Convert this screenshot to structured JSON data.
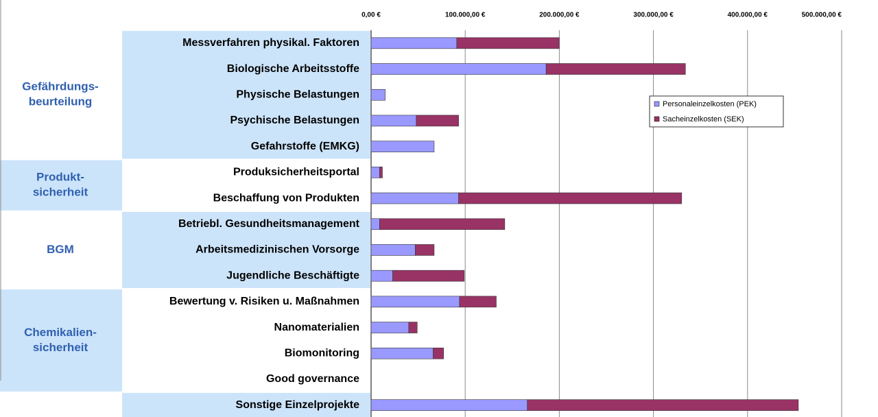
{
  "chart_data": {
    "type": "stacked-barh",
    "groups": [
      {
        "label": [
          "Gefährdungs-",
          "beurteilung"
        ],
        "categories": [
          "Messverfahren physikal. Faktoren",
          "Biologische Arbeitsstoffe",
          "Physische Belastungen",
          "Psychische Belastungen",
          "Gefahrstoffe (EMKG)"
        ]
      },
      {
        "label": [
          "Produkt-",
          "sicherheit"
        ],
        "categories": [
          "Produksicherheitsportal",
          "Beschaffung von Produkten"
        ]
      },
      {
        "label": [
          "BGM"
        ],
        "categories": [
          "Betriebl. Gesundheitsmanagement",
          "Arbeitsmedizinischen Vorsorge",
          "Jugendliche Beschäftigte"
        ]
      },
      {
        "label": [
          "Chemikalien-",
          "sicherheit"
        ],
        "categories": [
          "Bewertung v. Risiken u. Maßnahmen",
          "Nanomaterialien",
          "Biomonitoring",
          "Good governance"
        ]
      },
      {
        "categories": [
          "Sonstige Einzelprojekte"
        ]
      }
    ],
    "series": [
      {
        "name": "Personaleinzelkosten (PEK)",
        "color": "#9999ff",
        "values": [
          91000,
          186000,
          15000,
          48000,
          67000,
          9000,
          93000,
          9000,
          47000,
          23000,
          94000,
          40000,
          66000,
          0,
          166000
        ]
      },
      {
        "name": "Sacheinzelkosten (SEK)",
        "color": "#993366",
        "values": [
          109000,
          148000,
          0,
          45000,
          0,
          3000,
          237000,
          133000,
          20000,
          76000,
          39000,
          9000,
          11000,
          0,
          288000
        ]
      }
    ],
    "xlim": [
      0,
      500000
    ],
    "xticks": [
      {
        "value": 0,
        "label": "0,00 €"
      },
      {
        "value": 100000,
        "label": "100.000,00 €"
      },
      {
        "value": 200000,
        "label": "200.000,00 €"
      },
      {
        "value": 300000,
        "label": "300.000,00 €"
      },
      {
        "value": 400000,
        "label": "400.000,00 €"
      },
      {
        "value": 500000,
        "label": "500.000,00 €"
      }
    ],
    "grid": true,
    "legend": "upper-right"
  }
}
